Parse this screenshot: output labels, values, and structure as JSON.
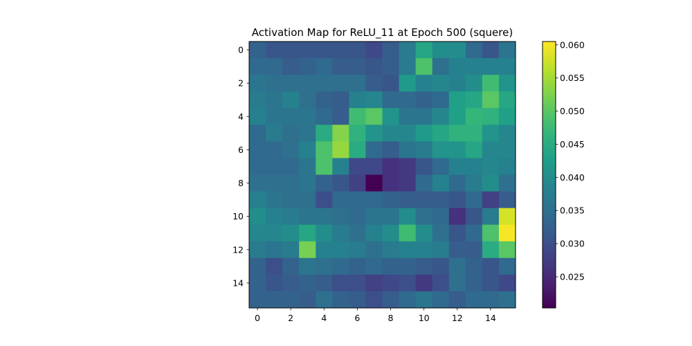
{
  "chart_data": {
    "type": "heatmap",
    "title": "Activation Map for ReLU_11 at Epoch 500 (squere)",
    "xlabel": "",
    "ylabel": "",
    "rows": 16,
    "cols": 16,
    "x_ticks": [
      "0",
      "2",
      "4",
      "6",
      "8",
      "10",
      "12",
      "14"
    ],
    "y_ticks": [
      "0",
      "2",
      "4",
      "6",
      "8",
      "10",
      "12",
      "14"
    ],
    "colormap": "viridis",
    "colorbar": {
      "min": 0.0203,
      "max": 0.0605,
      "ticks": [
        "0.025",
        "0.030",
        "0.035",
        "0.040",
        "0.045",
        "0.050",
        "0.055",
        "0.060"
      ]
    },
    "values": [
      [
        0.033,
        0.031,
        0.031,
        0.031,
        0.031,
        0.031,
        0.031,
        0.029,
        0.032,
        0.037,
        0.044,
        0.04,
        0.04,
        0.034,
        0.031,
        0.036
      ],
      [
        0.034,
        0.034,
        0.032,
        0.033,
        0.034,
        0.032,
        0.032,
        0.031,
        0.032,
        0.037,
        0.049,
        0.035,
        0.038,
        0.038,
        0.038,
        0.038
      ],
      [
        0.036,
        0.035,
        0.035,
        0.035,
        0.035,
        0.035,
        0.035,
        0.032,
        0.031,
        0.042,
        0.038,
        0.039,
        0.038,
        0.04,
        0.048,
        0.041
      ],
      [
        0.037,
        0.036,
        0.038,
        0.035,
        0.033,
        0.032,
        0.038,
        0.039,
        0.034,
        0.034,
        0.033,
        0.034,
        0.043,
        0.044,
        0.05,
        0.044
      ],
      [
        0.038,
        0.036,
        0.036,
        0.036,
        0.034,
        0.032,
        0.048,
        0.05,
        0.041,
        0.036,
        0.036,
        0.039,
        0.043,
        0.047,
        0.046,
        0.043
      ],
      [
        0.034,
        0.037,
        0.035,
        0.036,
        0.045,
        0.053,
        0.046,
        0.041,
        0.039,
        0.039,
        0.042,
        0.044,
        0.046,
        0.046,
        0.041,
        0.039
      ],
      [
        0.034,
        0.034,
        0.035,
        0.038,
        0.049,
        0.054,
        0.045,
        0.034,
        0.032,
        0.036,
        0.037,
        0.041,
        0.041,
        0.044,
        0.039,
        0.039
      ],
      [
        0.034,
        0.034,
        0.034,
        0.036,
        0.049,
        0.038,
        0.029,
        0.029,
        0.026,
        0.027,
        0.031,
        0.034,
        0.038,
        0.038,
        0.039,
        0.038
      ],
      [
        0.035,
        0.035,
        0.035,
        0.036,
        0.033,
        0.031,
        0.028,
        0.0203,
        0.026,
        0.027,
        0.034,
        0.038,
        0.034,
        0.037,
        0.04,
        0.035
      ],
      [
        0.038,
        0.036,
        0.035,
        0.035,
        0.03,
        0.034,
        0.034,
        0.034,
        0.033,
        0.032,
        0.032,
        0.032,
        0.031,
        0.034,
        0.028,
        0.032
      ],
      [
        0.04,
        0.038,
        0.037,
        0.036,
        0.036,
        0.035,
        0.034,
        0.036,
        0.036,
        0.04,
        0.035,
        0.034,
        0.026,
        0.031,
        0.037,
        0.058
      ],
      [
        0.039,
        0.039,
        0.04,
        0.044,
        0.04,
        0.037,
        0.035,
        0.038,
        0.04,
        0.048,
        0.04,
        0.035,
        0.031,
        0.034,
        0.049,
        0.06
      ],
      [
        0.037,
        0.036,
        0.037,
        0.052,
        0.038,
        0.038,
        0.037,
        0.035,
        0.037,
        0.038,
        0.038,
        0.037,
        0.032,
        0.032,
        0.045,
        0.05
      ],
      [
        0.033,
        0.03,
        0.033,
        0.036,
        0.035,
        0.034,
        0.033,
        0.034,
        0.033,
        0.033,
        0.032,
        0.031,
        0.035,
        0.033,
        0.031,
        0.034
      ],
      [
        0.033,
        0.031,
        0.032,
        0.033,
        0.032,
        0.03,
        0.03,
        0.028,
        0.029,
        0.03,
        0.027,
        0.03,
        0.035,
        0.033,
        0.031,
        0.029
      ],
      [
        0.033,
        0.033,
        0.033,
        0.032,
        0.035,
        0.033,
        0.032,
        0.03,
        0.032,
        0.034,
        0.036,
        0.034,
        0.032,
        0.034,
        0.034,
        0.035
      ]
    ]
  }
}
